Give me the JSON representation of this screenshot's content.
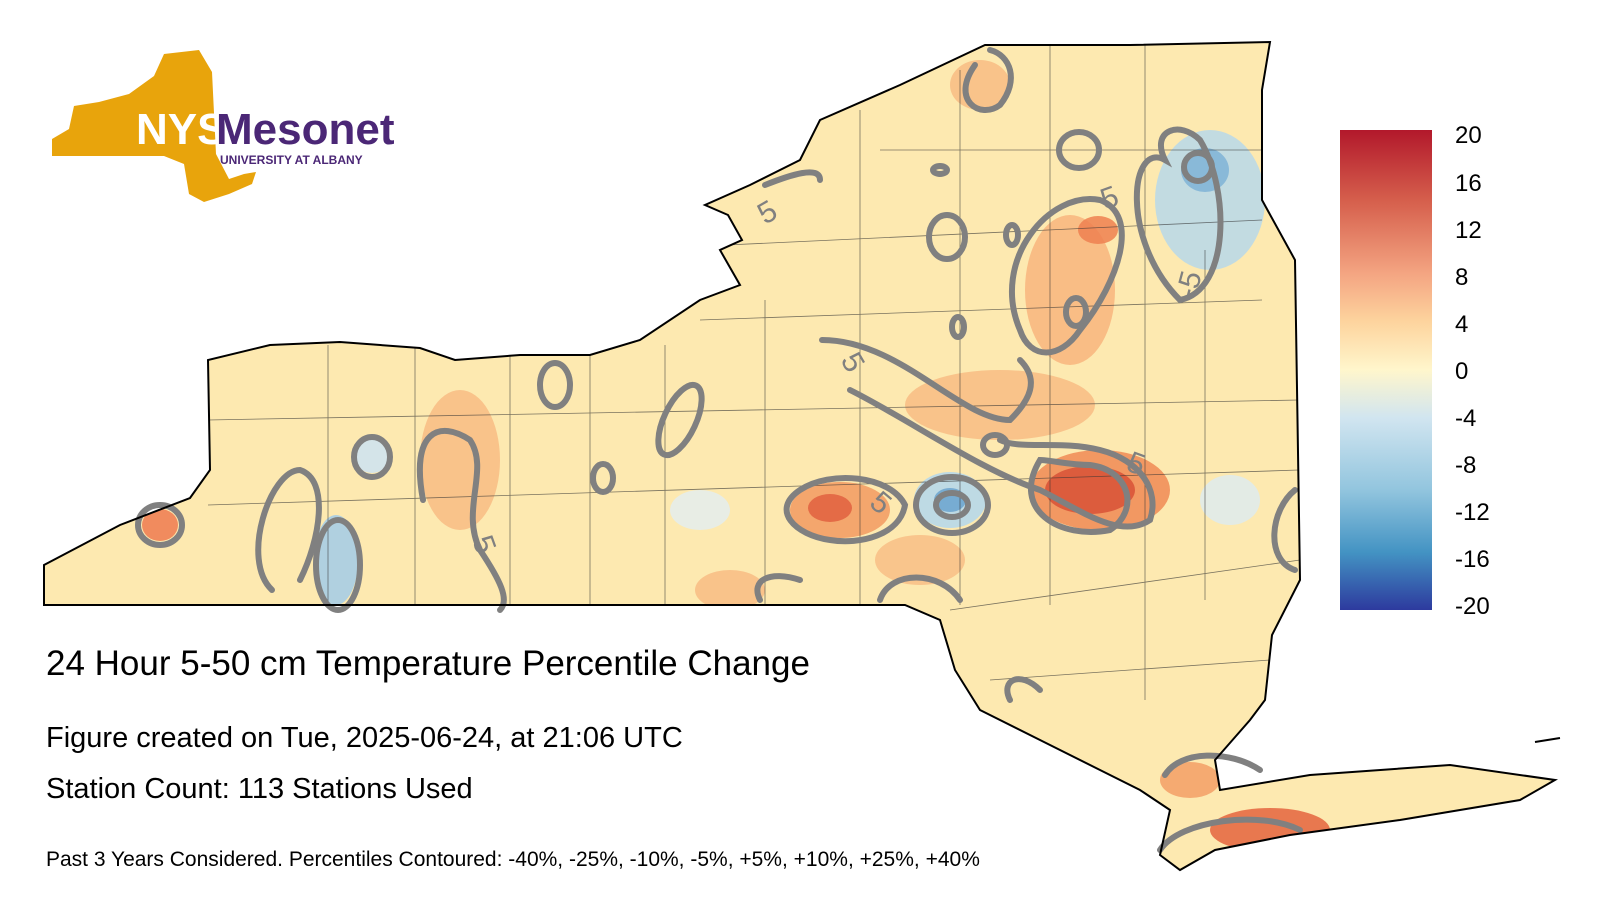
{
  "logo": {
    "line1": "NYS",
    "line2": "Mesonet",
    "subtitle": "UNIVERSITY AT ALBANY",
    "gold": "#e8a40c",
    "purple": "#4b2776"
  },
  "figure": {
    "title": "24 Hour 5-50 cm Temperature Percentile Change",
    "created": "Figure created on Tue, 2025-06-24, at 21:06 UTC",
    "stations": "Station Count: 113 Stations Used",
    "note": "Past 3 Years Considered. Percentiles Contoured: -40%, -25%, -10%, -5%, +5%, +10%, +25%, +40%"
  },
  "colorbar": {
    "ticks": [
      "20",
      "16",
      "12",
      "8",
      "4",
      "0",
      "-4",
      "-8",
      "-12",
      "-16",
      "-20"
    ],
    "colors": [
      "#b2182b",
      "#d6604d",
      "#f4a582",
      "#fdd49e",
      "#fff2c0",
      "#e8f0f5",
      "#92c5de",
      "#4393c3",
      "#2166ac"
    ]
  },
  "contour_labels": [
    "5",
    "5",
    "5",
    "5",
    "5",
    "5",
    "-5"
  ],
  "colors": {
    "contour": "#808080",
    "base": "#fde9b0",
    "outline": "#000000"
  }
}
